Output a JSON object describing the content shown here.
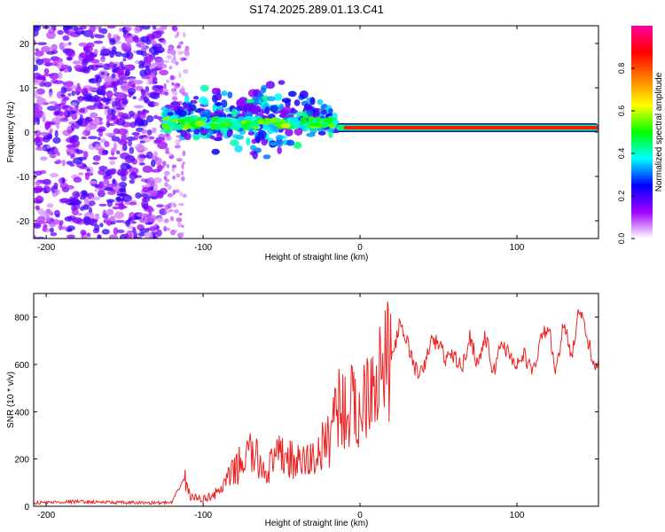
{
  "title": "S174.2025.289.01.13.C41",
  "chart_data": [
    {
      "type": "heatmap",
      "panel": "spectrogram",
      "xlabel": "Height of straight line (km)",
      "ylabel": "Frequency (Hz)",
      "xlim": [
        -208,
        152
      ],
      "ylim": [
        -24,
        24
      ],
      "xticks": [
        -200,
        -100,
        0,
        100
      ],
      "yticks": [
        -20,
        -10,
        0,
        10,
        20
      ],
      "colorbar": {
        "label": "Normalized spectral amplitude",
        "range": [
          0,
          1
        ],
        "ticks": [
          "0.0",
          "0.2",
          "0.4",
          "0.6",
          "0.8"
        ],
        "colors": [
          "#ffffff",
          "#a000ff",
          "#0000ff",
          "#00ffff",
          "#00ff00",
          "#ffff00",
          "#ff8000",
          "#ff0000",
          "#ff00a0"
        ]
      },
      "features": [
        {
          "name": "noise",
          "x_range": [
            -208,
            -125
          ],
          "freq_range": [
            -24,
            24
          ],
          "amplitude": 0.15
        },
        {
          "name": "sparse-noise",
          "x_range": [
            -125,
            -110
          ],
          "freq_range": [
            -24,
            24
          ],
          "amplitude": 0.05
        },
        {
          "name": "broadening",
          "x_range": [
            -125,
            -15
          ],
          "center_freq": 3,
          "spread_hz": 6,
          "amplitude": 0.3
        },
        {
          "name": "tone",
          "x_range": [
            -15,
            152
          ],
          "center_freq": 1,
          "amplitude": 0.85
        }
      ]
    },
    {
      "type": "line",
      "panel": "snr",
      "xlabel": "Height of straight line (km)",
      "ylabel": "SNR (10 * v/v)",
      "xlim": [
        -208,
        152
      ],
      "ylim": [
        0,
        900
      ],
      "xticks": [
        -200,
        -100,
        0,
        100
      ],
      "yticks": [
        0,
        200,
        400,
        600,
        800
      ],
      "color": "#ee2222",
      "series": [
        {
          "name": "SNR",
          "x": [
            -208,
            -180,
            -150,
            -120,
            -112,
            -108,
            -100,
            -90,
            -80,
            -70,
            -60,
            -50,
            -40,
            -30,
            -20,
            -15,
            -10,
            -5,
            0,
            5,
            10,
            15,
            20,
            25,
            30,
            35,
            40,
            45,
            50,
            55,
            60,
            65,
            70,
            75,
            80,
            85,
            90,
            95,
            100,
            105,
            110,
            115,
            120,
            125,
            130,
            135,
            140,
            145,
            150
          ],
          "y": [
            15,
            20,
            15,
            15,
            120,
            40,
            30,
            60,
            150,
            230,
            150,
            220,
            180,
            200,
            280,
            450,
            400,
            420,
            380,
            550,
            560,
            580,
            620,
            760,
            700,
            580,
            560,
            700,
            690,
            620,
            640,
            580,
            720,
            600,
            720,
            560,
            700,
            640,
            600,
            640,
            560,
            700,
            760,
            560,
            780,
            640,
            840,
            700,
            600
          ]
        }
      ]
    }
  ]
}
